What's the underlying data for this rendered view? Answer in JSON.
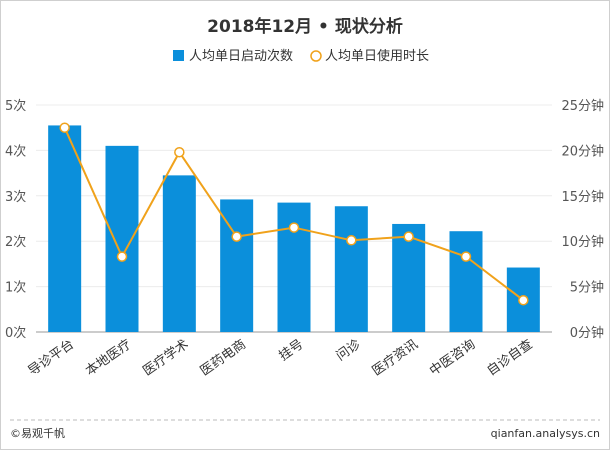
{
  "chart_data": {
    "type": "bar",
    "title": "2018年12月 • 现状分析",
    "categories": [
      "导诊平台",
      "本地医疗",
      "医疗学术",
      "医药电商",
      "挂号",
      "问诊",
      "医疗资讯",
      "中医咨询",
      "自诊自查"
    ],
    "series": [
      {
        "name": "人均单日启动次数",
        "type": "bar",
        "axis": "left",
        "color": "#0b8fdb",
        "values": [
          4.55,
          4.1,
          3.45,
          2.92,
          2.85,
          2.77,
          2.38,
          2.22,
          1.42
        ]
      },
      {
        "name": "人均单日使用时长",
        "type": "line",
        "axis": "right",
        "color": "#f0a21b",
        "values": [
          22.5,
          8.3,
          19.8,
          10.5,
          11.5,
          10.1,
          10.5,
          8.3,
          3.5
        ]
      }
    ],
    "y_left": {
      "ylim": [
        0,
        5
      ],
      "ticks": [
        "0次",
        "1次",
        "2次",
        "3次",
        "4次",
        "5次"
      ]
    },
    "y_right": {
      "ylim": [
        0,
        25
      ],
      "ticks": [
        "0分钟",
        "5分钟",
        "10分钟",
        "15分钟",
        "20分钟",
        "25分钟"
      ]
    },
    "legend": {
      "position": "top-center"
    }
  },
  "footer": {
    "source": "©易观千帆",
    "site": "qianfan.analysys.cn"
  }
}
